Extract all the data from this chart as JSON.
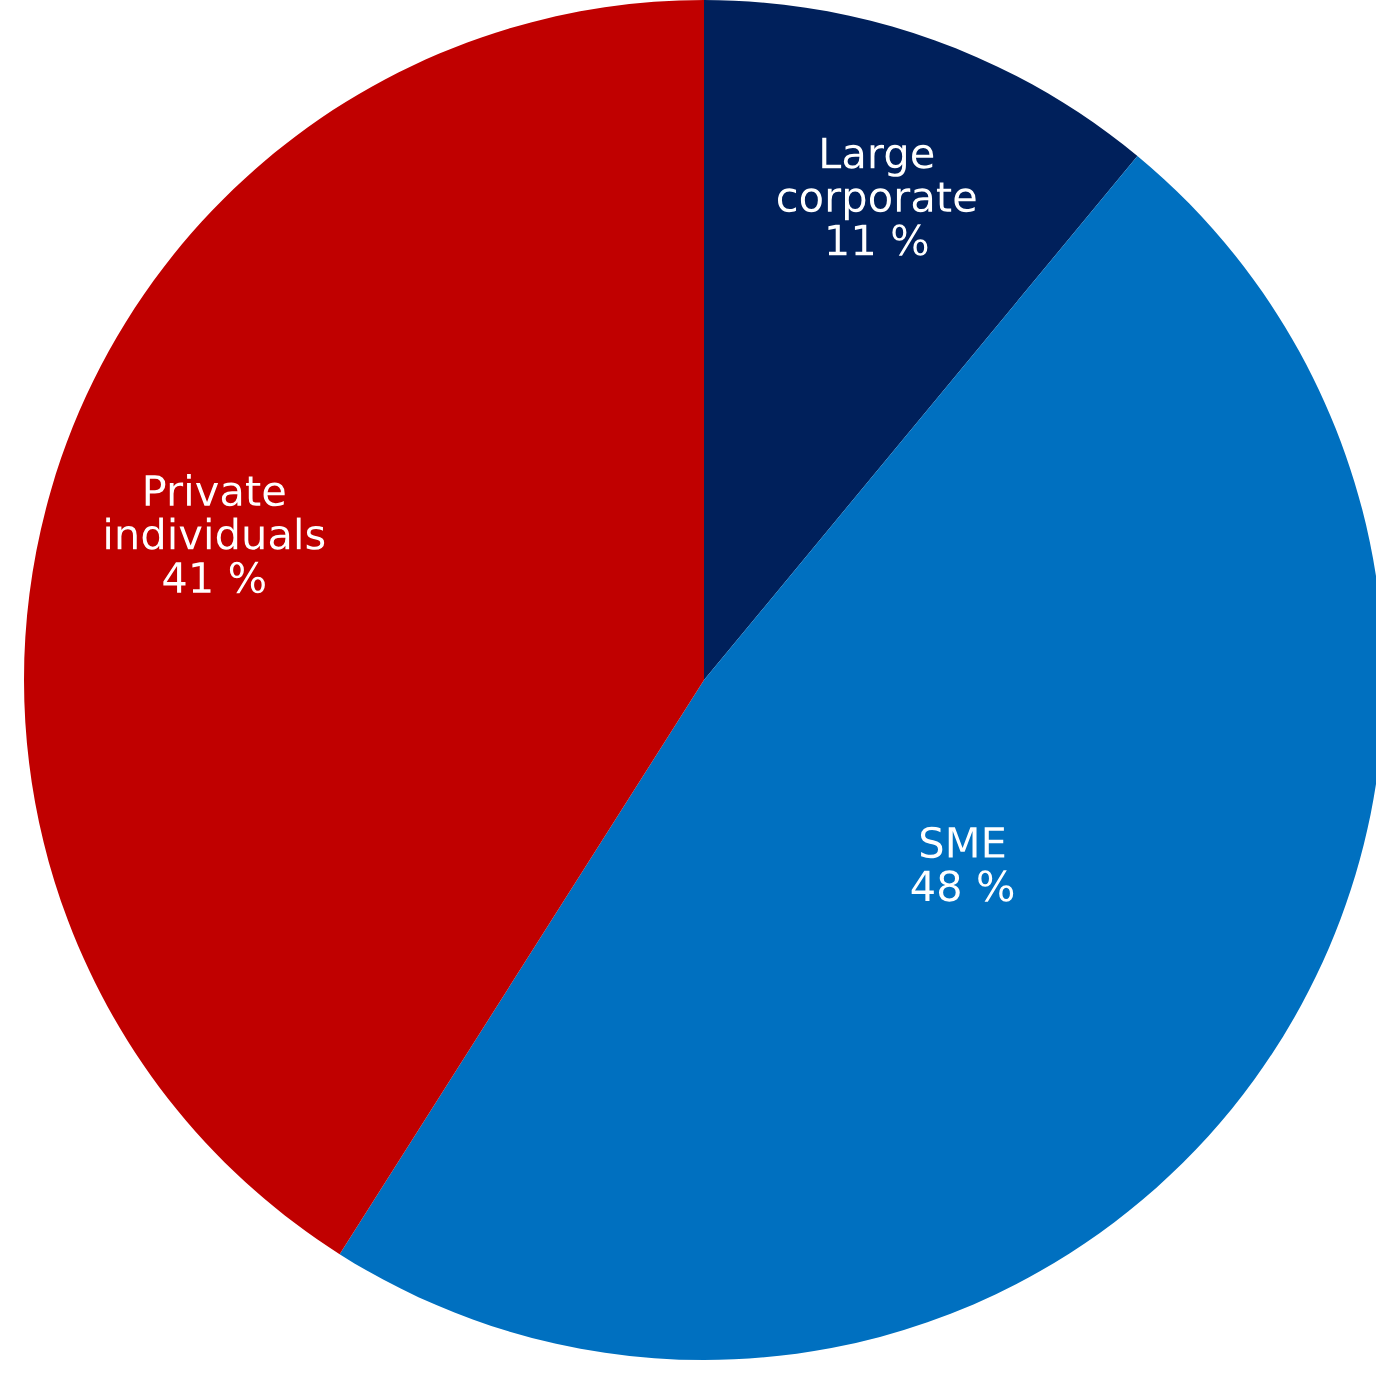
{
  "chart_data": {
    "type": "pie",
    "categories": [
      "Large corporate",
      "SME",
      "Private individuals"
    ],
    "values": [
      11,
      48,
      41
    ],
    "colors": [
      "#00205b",
      "#0070c0",
      "#c00000"
    ],
    "value_labels": [
      "11 %",
      "48 %",
      "41 %"
    ]
  }
}
